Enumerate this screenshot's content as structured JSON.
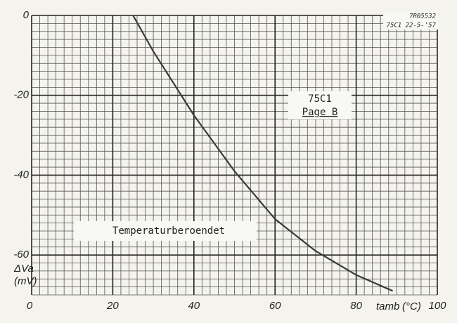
{
  "chart_data": {
    "type": "line",
    "x": [
      25,
      30,
      40,
      50,
      60,
      70,
      80,
      89
    ],
    "series": [
      {
        "color": "#3a3a3a",
        "values": [
          0,
          -9,
          -25,
          -39,
          -51,
          -59,
          -65,
          -69
        ]
      }
    ],
    "xlim": [
      0,
      100
    ],
    "xticks": [
      0,
      20,
      40,
      60,
      80,
      100
    ],
    "ylim": [
      -70,
      0
    ],
    "yticks": [
      0,
      -20,
      -40,
      -60
    ],
    "grid": true,
    "ylabel": [
      "ΔVa",
      "(mV)"
    ],
    "xlabel": [
      "tamb",
      "(°C)"
    ],
    "stamp": [
      "7R05532",
      "75C1 22-5-'57"
    ],
    "note": [
      "75C1",
      "Page B"
    ],
    "caption": "Temperaturberoendet"
  }
}
